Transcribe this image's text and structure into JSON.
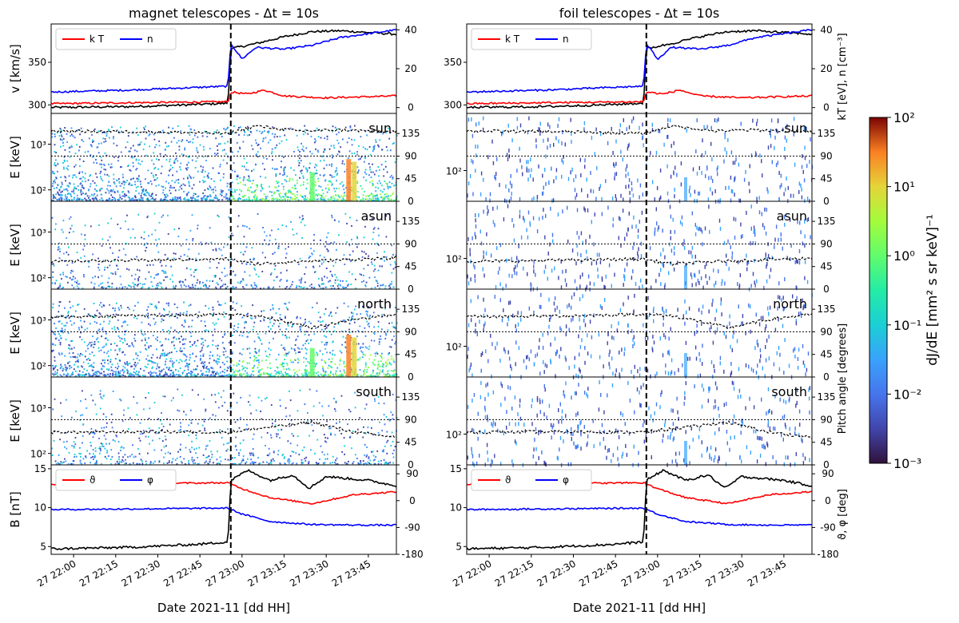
{
  "chart_data": {
    "type": "multi-panel spectrogram and time series",
    "time_axis": {
      "start": "2021-11-27 21:52",
      "end": "2021-11-27 23:55",
      "ticks": [
        "2021-11-27 22:00",
        "2021-11-27 22:15",
        "2021-11-27 22:30",
        "2021-11-27 22:45",
        "2021-11-27 23:00",
        "2021-11-27 23:15",
        "2021-11-27 23:30",
        "2021-11-27 23:45"
      ],
      "tick_labels": [
        "27 22:00",
        "27 22:15",
        "27 22:30",
        "27 22:45",
        "27 23:00",
        "27 23:15",
        "27 23:30",
        "27 23:45"
      ],
      "label": "Date 2021-11 [dd HH]",
      "shock_time": "2021-11-27 22:56"
    },
    "columns": [
      {
        "title": "magnet telescopes  -  Δt = 10s",
        "show_left_labels": true,
        "show_right_labels": false
      },
      {
        "title": "foil telescopes  -  Δt = 10s",
        "show_left_labels": false,
        "show_right_labels": true
      }
    ],
    "plasma_panel": {
      "left_axis": {
        "label": "v [km/s]",
        "ticks": [
          300,
          350
        ],
        "range": [
          290,
          395
        ]
      },
      "right_axis": {
        "label": "kT [eV], n [cm⁻³]",
        "ticks": [
          0,
          20,
          40
        ],
        "range": [
          -3,
          43
        ]
      },
      "legend": [
        "k T",
        "n"
      ],
      "series": [
        {
          "name": "v",
          "color": "#000000",
          "axis": "left",
          "points": [
            [
              "2021-11-27 21:52",
              297
            ],
            [
              "2021-11-27 22:20",
              298
            ],
            [
              "2021-11-27 22:40",
              300
            ],
            [
              "2021-11-27 22:55",
              302
            ],
            [
              "2021-11-27 22:56",
              366
            ],
            [
              "2021-11-27 23:05",
              372
            ],
            [
              "2021-11-27 23:15",
              380
            ],
            [
              "2021-11-27 23:25",
              386
            ],
            [
              "2021-11-27 23:35",
              387
            ],
            [
              "2021-11-27 23:45",
              385
            ],
            [
              "2021-11-27 23:55",
              383
            ]
          ]
        },
        {
          "name": "k T",
          "color": "#ff0000",
          "axis": "right",
          "points": [
            [
              "2021-11-27 21:52",
              2
            ],
            [
              "2021-11-27 22:20",
              2.5
            ],
            [
              "2021-11-27 22:55",
              3
            ],
            [
              "2021-11-27 22:56",
              8
            ],
            [
              "2021-11-27 23:02",
              7
            ],
            [
              "2021-11-27 23:08",
              9
            ],
            [
              "2021-11-27 23:15",
              6
            ],
            [
              "2021-11-27 23:30",
              5
            ],
            [
              "2021-11-27 23:55",
              6
            ]
          ]
        },
        {
          "name": "n",
          "color": "#0000ff",
          "axis": "right",
          "points": [
            [
              "2021-11-27 21:52",
              8
            ],
            [
              "2021-11-27 22:20",
              9
            ],
            [
              "2021-11-27 22:55",
              11
            ],
            [
              "2021-11-27 22:56",
              33
            ],
            [
              "2021-11-27 23:00",
              25
            ],
            [
              "2021-11-27 23:05",
              31
            ],
            [
              "2021-11-27 23:15",
              30
            ],
            [
              "2021-11-27 23:25",
              32
            ],
            [
              "2021-11-27 23:35",
              36
            ],
            [
              "2021-11-27 23:45",
              38
            ],
            [
              "2021-11-27 23:55",
              40
            ]
          ]
        }
      ]
    },
    "spectrogram_panels": [
      {
        "label": "sun",
        "pitch_angle": [
          [
            "2021-11-27 21:52",
            140
          ],
          [
            "2021-11-27 22:30",
            138
          ],
          [
            "2021-11-27 22:55",
            135
          ],
          [
            "2021-11-27 23:05",
            150
          ],
          [
            "2021-11-27 23:20",
            140
          ],
          [
            "2021-11-27 23:35",
            142
          ],
          [
            "2021-11-27 23:55",
            138
          ]
        ]
      },
      {
        "label": "asun",
        "pitch_angle": [
          [
            "2021-11-27 21:52",
            55
          ],
          [
            "2021-11-27 22:30",
            58
          ],
          [
            "2021-11-27 22:55",
            60
          ],
          [
            "2021-11-27 23:05",
            50
          ],
          [
            "2021-11-27 23:20",
            55
          ],
          [
            "2021-11-27 23:35",
            58
          ],
          [
            "2021-11-27 23:55",
            62
          ]
        ]
      },
      {
        "label": "north",
        "pitch_angle": [
          [
            "2021-11-27 21:52",
            120
          ],
          [
            "2021-11-27 22:30",
            122
          ],
          [
            "2021-11-27 22:55",
            125
          ],
          [
            "2021-11-27 23:05",
            122
          ],
          [
            "2021-11-27 23:20",
            105
          ],
          [
            "2021-11-27 23:25",
            98
          ],
          [
            "2021-11-27 23:40",
            115
          ],
          [
            "2021-11-27 23:55",
            125
          ]
        ]
      },
      {
        "label": "south",
        "pitch_angle": [
          [
            "2021-11-27 21:52",
            65
          ],
          [
            "2021-11-27 22:30",
            66
          ],
          [
            "2021-11-27 22:55",
            65
          ],
          [
            "2021-11-27 23:10",
            75
          ],
          [
            "2021-11-27 23:25",
            85
          ],
          [
            "2021-11-27 23:40",
            65
          ],
          [
            "2021-11-27 23:55",
            55
          ]
        ]
      }
    ],
    "spectrogram_axes": {
      "left_label": "E [keV]",
      "left_ticks_magnet": [
        "10²",
        "10³"
      ],
      "left_ticks_foil": [
        "10²"
      ],
      "right_label": "Pitch angle [degrees]",
      "right_ticks": [
        0,
        45,
        90,
        135
      ],
      "right_range": [
        0,
        175
      ]
    },
    "field_panel": {
      "left_axis": {
        "label": "B [nT]",
        "ticks": [
          5,
          10,
          15
        ],
        "range": [
          4,
          15.5
        ]
      },
      "right_axis": {
        "label": "ϑ, φ [deg]",
        "ticks": [
          -180,
          -90,
          0,
          90
        ],
        "range": [
          -180,
          120
        ]
      },
      "legend": [
        "ϑ",
        "φ"
      ],
      "series": [
        {
          "name": "B",
          "color": "#000000",
          "axis": "left",
          "points": [
            [
              "2021-11-27 21:52",
              4.7
            ],
            [
              "2021-11-27 22:20",
              4.9
            ],
            [
              "2021-11-27 22:45",
              5.3
            ],
            [
              "2021-11-27 22:55",
              5.6
            ],
            [
              "2021-11-27 22:56",
              13.5
            ],
            [
              "2021-11-27 23:02",
              14.8
            ],
            [
              "2021-11-27 23:10",
              13.5
            ],
            [
              "2021-11-27 23:18",
              14.2
            ],
            [
              "2021-11-27 23:24",
              12.5
            ],
            [
              "2021-11-27 23:30",
              14
            ],
            [
              "2021-11-27 23:45",
              13.5
            ],
            [
              "2021-11-27 23:55",
              12.8
            ]
          ]
        },
        {
          "name": "ϑ",
          "color": "#ff0000",
          "axis": "right",
          "points": [
            [
              "2021-11-27 21:52",
              55
            ],
            [
              "2021-11-27 22:20",
              57
            ],
            [
              "2021-11-27 22:55",
              60
            ],
            [
              "2021-11-27 23:00",
              40
            ],
            [
              "2021-11-27 23:10",
              10
            ],
            [
              "2021-11-27 23:25",
              -10
            ],
            [
              "2021-11-27 23:40",
              20
            ],
            [
              "2021-11-27 23:55",
              30
            ]
          ]
        },
        {
          "name": "φ",
          "color": "#0000ff",
          "axis": "right",
          "points": [
            [
              "2021-11-27 21:52",
              -30
            ],
            [
              "2021-11-27 22:20",
              -28
            ],
            [
              "2021-11-27 22:55",
              -25
            ],
            [
              "2021-11-27 23:00",
              -45
            ],
            [
              "2021-11-27 23:10",
              -70
            ],
            [
              "2021-11-27 23:25",
              -80
            ],
            [
              "2021-11-27 23:40",
              -82
            ],
            [
              "2021-11-27 23:55",
              -82
            ]
          ]
        }
      ]
    },
    "colorbar": {
      "label": "dJ/dE [mm² s sr keV]⁻¹",
      "ticks": [
        "10⁻³",
        "10⁻²",
        "10⁻¹",
        "10⁰",
        "10¹",
        "10²"
      ],
      "scale": "log",
      "range": [
        0.001,
        100
      ],
      "colormap": "turbo"
    }
  }
}
